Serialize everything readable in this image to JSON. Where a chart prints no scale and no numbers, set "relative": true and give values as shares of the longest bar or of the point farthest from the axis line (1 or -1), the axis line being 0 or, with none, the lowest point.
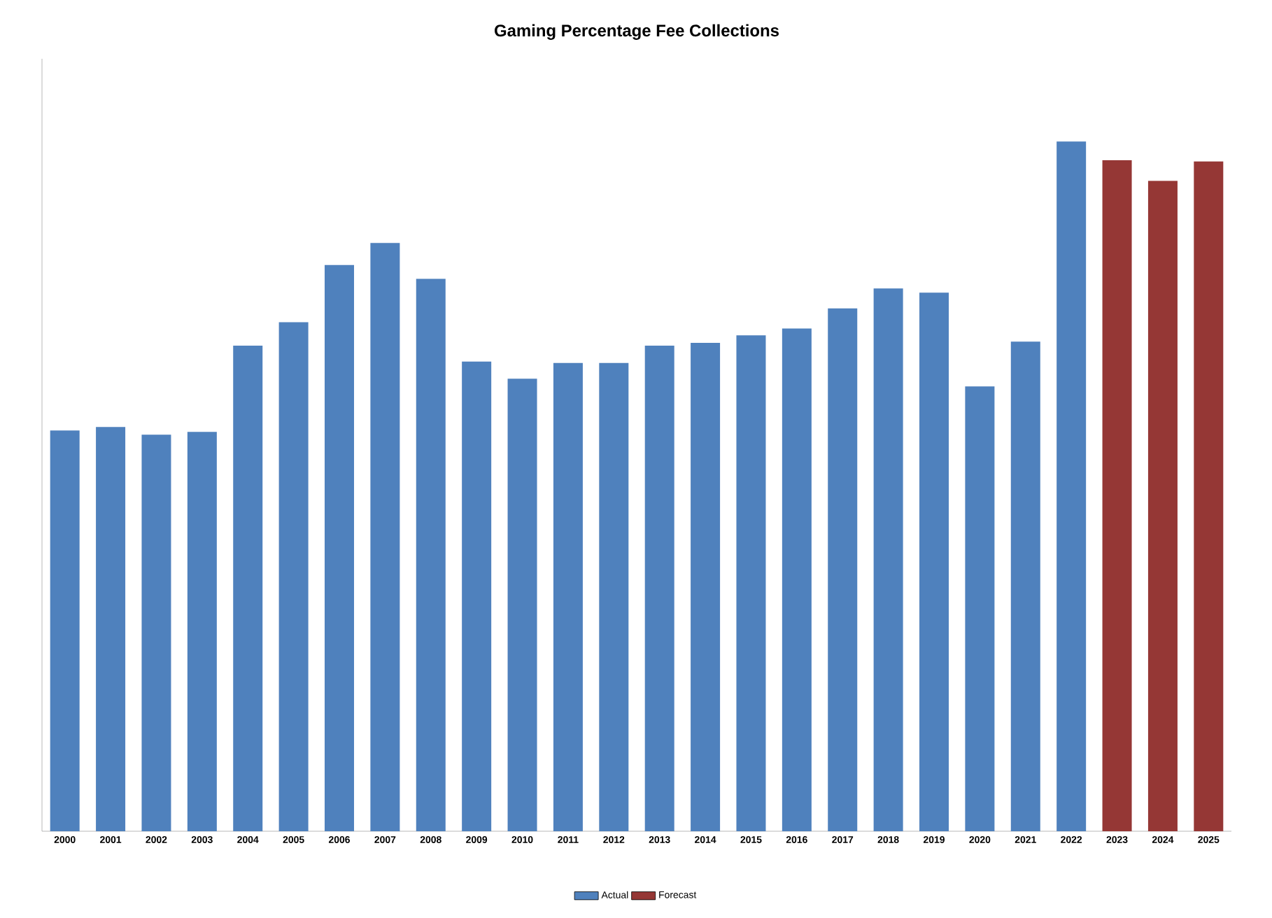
{
  "chart_data": {
    "type": "bar",
    "title": "Gaming Percentage Fee Collections",
    "relative": true,
    "legend": "bottom",
    "categories": [
      "2000",
      "2001",
      "2002",
      "2003",
      "2004",
      "2005",
      "2006",
      "2007",
      "2008",
      "2009",
      "2010",
      "2011",
      "2012",
      "2013",
      "2014",
      "2015",
      "2016",
      "2017",
      "2018",
      "2019",
      "2020",
      "2021",
      "2022",
      "2023",
      "2024",
      "2025"
    ],
    "series": [
      {
        "name": "Actual",
        "color": "#4f81bd",
        "values": [
          0.581,
          0.586,
          0.575,
          0.579,
          0.704,
          0.738,
          0.821,
          0.853,
          0.801,
          0.681,
          0.656,
          0.679,
          0.679,
          0.704,
          0.708,
          0.719,
          0.729,
          0.758,
          0.787,
          0.781,
          0.645,
          0.71,
          1,
          null,
          null,
          null
        ]
      },
      {
        "name": "Forecast",
        "color": "#953735",
        "values": [
          null,
          null,
          null,
          null,
          null,
          null,
          null,
          null,
          null,
          null,
          null,
          null,
          null,
          null,
          null,
          null,
          null,
          null,
          null,
          null,
          null,
          null,
          null,
          0.973,
          0.943,
          0.971
        ]
      }
    ]
  }
}
